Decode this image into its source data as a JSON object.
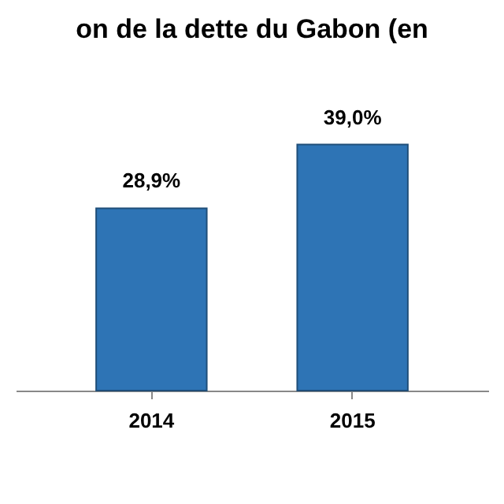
{
  "chart_data": {
    "type": "bar",
    "title": "on de la dette du Gabon (en",
    "categories": [
      "2014",
      "2015"
    ],
    "values": [
      28.9,
      39.0
    ],
    "value_labels": [
      "28,9%",
      "39,0%"
    ],
    "color": "#2e74b5"
  }
}
